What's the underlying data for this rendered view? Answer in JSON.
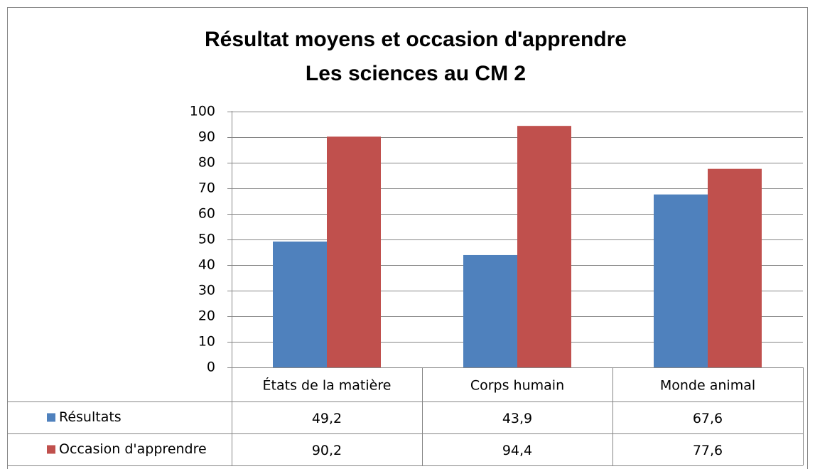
{
  "chart_data": {
    "type": "bar",
    "title": "Résultat moyens et occasion d'apprendre",
    "subtitle": "Les sciences au CM 2",
    "categories": [
      "États de la matière",
      "Corps humain",
      "Monde animal"
    ],
    "series": [
      {
        "name": "Résultats",
        "color": "#4f81bd",
        "values": [
          49.2,
          43.9,
          67.6
        ],
        "value_labels": [
          "49,2",
          "43,9",
          "67,6"
        ]
      },
      {
        "name": "Occasion d'apprendre",
        "color": "#c0504d",
        "values": [
          90.2,
          94.4,
          77.6
        ],
        "value_labels": [
          "90,2",
          "94,4",
          "77,6"
        ]
      }
    ],
    "ylim": [
      0,
      100
    ],
    "yticks": [
      0,
      10,
      20,
      30,
      40,
      50,
      60,
      70,
      80,
      90,
      100
    ],
    "grid": true
  }
}
